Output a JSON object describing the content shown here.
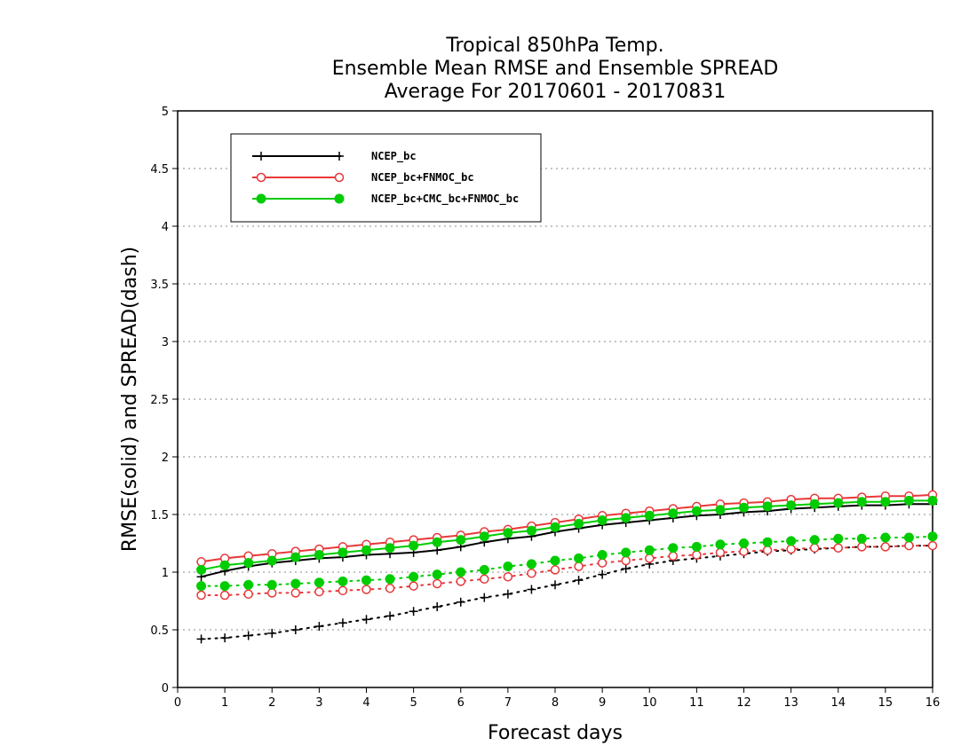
{
  "chart_data": {
    "type": "line",
    "title_lines": [
      "Tropical 850hPa Temp.",
      "Ensemble Mean RMSE and Ensemble SPREAD",
      "Average For 20170601 - 20170831"
    ],
    "xlabel": "Forecast days",
    "ylabel": "RMSE(solid) and SPREAD(dash)",
    "xlim": [
      0,
      16
    ],
    "ylim": [
      0,
      5
    ],
    "x_ticks": [
      0,
      1,
      2,
      3,
      4,
      5,
      6,
      7,
      8,
      9,
      10,
      11,
      12,
      13,
      14,
      15,
      16
    ],
    "y_ticks": [
      0,
      0.5,
      1,
      1.5,
      2,
      2.5,
      3,
      3.5,
      4,
      4.5,
      5
    ],
    "x_tick_labels": [
      "0",
      "1",
      "2",
      "3",
      "4",
      "5",
      "6",
      "7",
      "8",
      "9",
      "10",
      "11",
      "12",
      "13",
      "14",
      "15",
      "16"
    ],
    "y_tick_labels": [
      "0",
      "0.5",
      "1",
      "1.5",
      "2",
      "2.5",
      "3",
      "3.5",
      "4",
      "4.5",
      "5"
    ],
    "grid": "horizontal dotted",
    "legend_position": "top-left",
    "x": [
      0.5,
      1,
      1.5,
      2,
      2.5,
      3,
      3.5,
      4,
      4.5,
      5,
      5.5,
      6,
      6.5,
      7,
      7.5,
      8,
      8.5,
      9,
      9.5,
      10,
      10.5,
      11,
      11.5,
      12,
      12.5,
      13,
      13.5,
      14,
      14.5,
      15,
      15.5,
      16
    ],
    "series": [
      {
        "name": "NCEP_bc",
        "color": "#000000",
        "marker": "plus",
        "rmse": [
          0.96,
          1.01,
          1.05,
          1.08,
          1.1,
          1.12,
          1.13,
          1.15,
          1.16,
          1.17,
          1.19,
          1.22,
          1.26,
          1.29,
          1.31,
          1.35,
          1.38,
          1.41,
          1.43,
          1.45,
          1.47,
          1.49,
          1.5,
          1.52,
          1.53,
          1.55,
          1.56,
          1.57,
          1.58,
          1.58,
          1.59,
          1.59
        ],
        "spread": [
          0.42,
          0.43,
          0.45,
          0.47,
          0.5,
          0.53,
          0.56,
          0.59,
          0.62,
          0.66,
          0.7,
          0.74,
          0.78,
          0.81,
          0.85,
          0.89,
          0.93,
          0.98,
          1.03,
          1.07,
          1.1,
          1.12,
          1.14,
          1.16,
          1.18,
          1.19,
          1.2,
          1.21,
          1.22,
          1.22,
          1.23,
          1.23
        ]
      },
      {
        "name": "NCEP_bc+FNMOC_bc",
        "color": "#e8383a",
        "marker": "open-circle",
        "rmse": [
          1.09,
          1.12,
          1.14,
          1.16,
          1.18,
          1.2,
          1.22,
          1.24,
          1.26,
          1.28,
          1.3,
          1.32,
          1.35,
          1.37,
          1.4,
          1.43,
          1.46,
          1.49,
          1.51,
          1.53,
          1.55,
          1.57,
          1.59,
          1.6,
          1.61,
          1.63,
          1.64,
          1.64,
          1.65,
          1.66,
          1.66,
          1.67
        ],
        "spread": [
          0.8,
          0.8,
          0.81,
          0.82,
          0.82,
          0.83,
          0.84,
          0.85,
          0.86,
          0.88,
          0.9,
          0.92,
          0.94,
          0.96,
          0.99,
          1.02,
          1.05,
          1.08,
          1.1,
          1.12,
          1.14,
          1.15,
          1.17,
          1.18,
          1.19,
          1.2,
          1.21,
          1.21,
          1.22,
          1.22,
          1.23,
          1.23
        ]
      },
      {
        "name": "NCEP_bc+CMC_bc+FNMOC_bc",
        "color": "#00cc00",
        "marker": "filled-circle",
        "rmse": [
          1.02,
          1.06,
          1.08,
          1.1,
          1.13,
          1.15,
          1.17,
          1.19,
          1.21,
          1.23,
          1.26,
          1.28,
          1.31,
          1.34,
          1.36,
          1.39,
          1.42,
          1.45,
          1.47,
          1.49,
          1.51,
          1.53,
          1.54,
          1.56,
          1.57,
          1.58,
          1.59,
          1.6,
          1.61,
          1.61,
          1.62,
          1.62
        ],
        "spread": [
          0.88,
          0.88,
          0.89,
          0.89,
          0.9,
          0.91,
          0.92,
          0.93,
          0.94,
          0.96,
          0.98,
          1.0,
          1.02,
          1.05,
          1.07,
          1.1,
          1.12,
          1.15,
          1.17,
          1.19,
          1.21,
          1.22,
          1.24,
          1.25,
          1.26,
          1.27,
          1.28,
          1.29,
          1.29,
          1.3,
          1.3,
          1.31
        ]
      }
    ]
  }
}
